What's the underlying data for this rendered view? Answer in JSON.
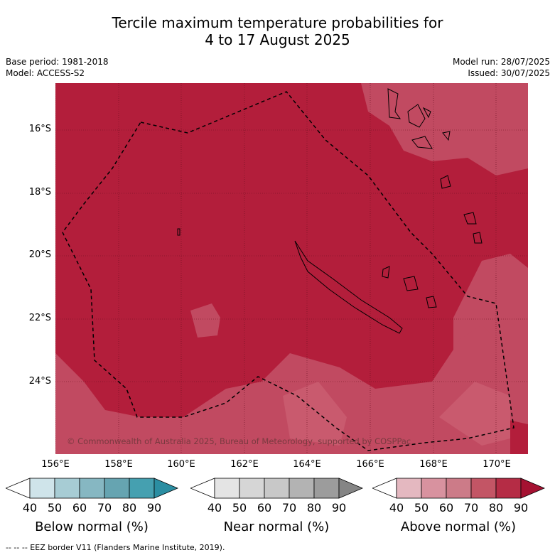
{
  "title": {
    "line1": "Tercile maximum temperature probabilities for",
    "line2": "4 to 17 August 2025"
  },
  "meta": {
    "base_period": "Base period: 1981-2018",
    "model": "Model: ACCESS-S2",
    "model_run": "Model run: 28/07/2025",
    "issued": "Issued: 30/07/2025"
  },
  "map": {
    "copyright": "© Commonwealth of Australia 2025, Bureau of Meteorology, supported by COSPPac",
    "lat_labels": [
      "16°S",
      "18°S",
      "20°S",
      "22°S",
      "24°S"
    ],
    "lon_labels": [
      "156°E",
      "158°E",
      "160°E",
      "162°E",
      "164°E",
      "166°E",
      "168°E",
      "170°E"
    ],
    "colors": {
      "above_90": "#b31e3b",
      "above_80": "#c4495f",
      "above_70": "#c95a6e",
      "ocean_fill": "#b31e3b"
    }
  },
  "colorbars": [
    {
      "title": "Below normal (%)",
      "ticks": [
        "40",
        "50",
        "60",
        "70",
        "80",
        "90"
      ],
      "colors": [
        "#ffffff",
        "#cfe4ea",
        "#a7ccd4",
        "#86b7c2",
        "#66a4b1",
        "#45a0b0",
        "#2b8ea2"
      ]
    },
    {
      "title": "Near normal (%)",
      "ticks": [
        "40",
        "50",
        "60",
        "70",
        "80",
        "90"
      ],
      "colors": [
        "#ffffff",
        "#e4e4e4",
        "#d6d6d6",
        "#c8c8c8",
        "#b3b3b3",
        "#9c9c9c",
        "#858585"
      ]
    },
    {
      "title": "Above normal (%)",
      "ticks": [
        "40",
        "50",
        "60",
        "70",
        "80",
        "90"
      ],
      "colors": [
        "#ffffff",
        "#e4b8c0",
        "#d8929f",
        "#cc7b88",
        "#c35565",
        "#b52c45",
        "#a51232"
      ]
    }
  ],
  "footnote": "--  --  -- EEZ border V11 (Flanders Marine Institute, 2019)."
}
